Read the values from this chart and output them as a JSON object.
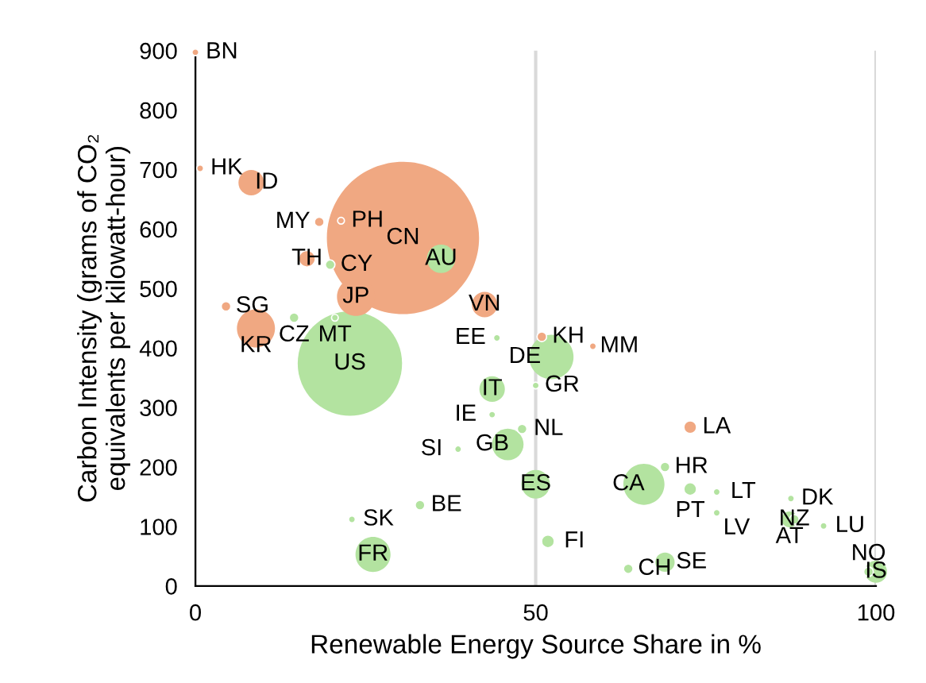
{
  "chart_data": {
    "type": "bubble",
    "xlabel": "Renewable Energy Source Share in %",
    "ylabel": "Carbon Intensity (grams of CO₂\nequivalents per kilowatt-hour)",
    "xlim": [
      0,
      100
    ],
    "xticks": [
      0,
      50,
      100
    ],
    "ylim": [
      0,
      900
    ],
    "yticks": [
      0,
      100,
      200,
      300,
      400,
      500,
      600,
      700,
      800,
      900
    ],
    "grid": "x",
    "legend": false,
    "series": [
      {
        "color": "#f0a882",
        "x": [
          0,
          0.7,
          8.2,
          18.2,
          21.4,
          16.4,
          30.5,
          23.6,
          4.5,
          8.9,
          42.5,
          50.9,
          58.4,
          72.7
        ],
        "values": [
          897,
          702,
          678,
          612,
          614,
          550,
          585,
          486,
          470,
          433,
          473,
          419,
          403,
          267
        ],
        "sizes": [
          0.002,
          0.002,
          0.028,
          0.004,
          0.002,
          0.01,
          1,
          0.0625,
          0.004,
          0.0625,
          0.028,
          0.004,
          0.002,
          0.007
        ]
      },
      {
        "color": "#b3e3a0",
        "x": [
          19.8,
          36.1,
          20.5,
          14.5,
          22.7,
          44.3,
          52.3,
          43.6,
          50,
          43.6,
          48,
          45.9,
          38.6,
          50,
          69,
          65.9,
          72.7,
          76.6,
          76.6,
          87.5,
          87.3,
          88,
          92.3,
          51.8,
          63.6,
          69,
          98.9,
          100,
          23,
          33,
          26.1
        ],
        "values": [
          540,
          550,
          451,
          451,
          374,
          417,
          385,
          331,
          337,
          288,
          264,
          238,
          230,
          171,
          200,
          171,
          163,
          158,
          123,
          147,
          112,
          112,
          101,
          75,
          29,
          40,
          24,
          24,
          112,
          136,
          53
        ],
        "sizes": [
          0.004,
          0.035,
          0.002,
          0.004,
          0.47,
          0.002,
          0.085,
          0.028,
          0.002,
          0.002,
          0.004,
          0.043,
          0.002,
          0.035,
          0.004,
          0.073,
          0.007,
          0.002,
          0.002,
          0.002,
          0.011,
          0.004,
          0.002,
          0.007,
          0.004,
          0.016,
          0.004,
          0.021,
          0.002,
          0.004,
          0.053
        ]
      }
    ],
    "annotations": [
      {
        "text": "BN",
        "x": 0,
        "y": 897
      },
      {
        "text": "HK",
        "x": 0.7,
        "y": 702
      },
      {
        "text": "ID",
        "x": 8.2,
        "y": 678
      },
      {
        "text": "MY",
        "x": 18.2,
        "y": 612
      },
      {
        "text": "PH",
        "x": 21.4,
        "y": 614
      },
      {
        "text": "TH",
        "x": 16.4,
        "y": 550
      },
      {
        "text": "CN",
        "x": 30.5,
        "y": 585
      },
      {
        "text": "JP",
        "x": 23.6,
        "y": 486
      },
      {
        "text": "SG",
        "x": 4.5,
        "y": 470
      },
      {
        "text": "KR",
        "x": 8.9,
        "y": 433
      },
      {
        "text": "VN",
        "x": 42.5,
        "y": 473
      },
      {
        "text": "KH",
        "x": 50.9,
        "y": 419
      },
      {
        "text": "MM",
        "x": 58.4,
        "y": 403
      },
      {
        "text": "LA",
        "x": 72.7,
        "y": 267
      },
      {
        "text": "CY",
        "x": 19.8,
        "y": 540
      },
      {
        "text": "AU",
        "x": 36.1,
        "y": 550
      },
      {
        "text": "MT",
        "x": 20.5,
        "y": 451
      },
      {
        "text": "CZ",
        "x": 14.5,
        "y": 451
      },
      {
        "text": "US",
        "x": 22.7,
        "y": 374
      },
      {
        "text": "EE",
        "x": 44.3,
        "y": 417
      },
      {
        "text": "DE",
        "x": 52.3,
        "y": 385
      },
      {
        "text": "IT",
        "x": 43.6,
        "y": 331
      },
      {
        "text": "GR",
        "x": 50,
        "y": 337
      },
      {
        "text": "IE",
        "x": 43.6,
        "y": 288
      },
      {
        "text": "NL",
        "x": 48,
        "y": 264
      },
      {
        "text": "GB",
        "x": 45.9,
        "y": 238
      },
      {
        "text": "SI",
        "x": 38.6,
        "y": 230
      },
      {
        "text": "ES",
        "x": 50,
        "y": 171
      },
      {
        "text": "HR",
        "x": 69,
        "y": 200
      },
      {
        "text": "CA",
        "x": 65.9,
        "y": 171
      },
      {
        "text": "PT",
        "x": 72.7,
        "y": 163
      },
      {
        "text": "LT",
        "x": 76.6,
        "y": 158
      },
      {
        "text": "LV",
        "x": 76.6,
        "y": 123
      },
      {
        "text": "DK",
        "x": 87.5,
        "y": 147
      },
      {
        "text": "AT",
        "x": 87.3,
        "y": 112
      },
      {
        "text": "NZ",
        "x": 88,
        "y": 112
      },
      {
        "text": "LU",
        "x": 92.3,
        "y": 101
      },
      {
        "text": "FI",
        "x": 51.8,
        "y": 75
      },
      {
        "text": "CH",
        "x": 63.6,
        "y": 29
      },
      {
        "text": "SE",
        "x": 69,
        "y": 40
      },
      {
        "text": "NO",
        "x": 98.9,
        "y": 24
      },
      {
        "text": "IS",
        "x": 100,
        "y": 24
      },
      {
        "text": "SK",
        "x": 23,
        "y": 112
      },
      {
        "text": "BE",
        "x": 33,
        "y": 136
      },
      {
        "text": "FR",
        "x": 26.1,
        "y": 53
      }
    ]
  }
}
